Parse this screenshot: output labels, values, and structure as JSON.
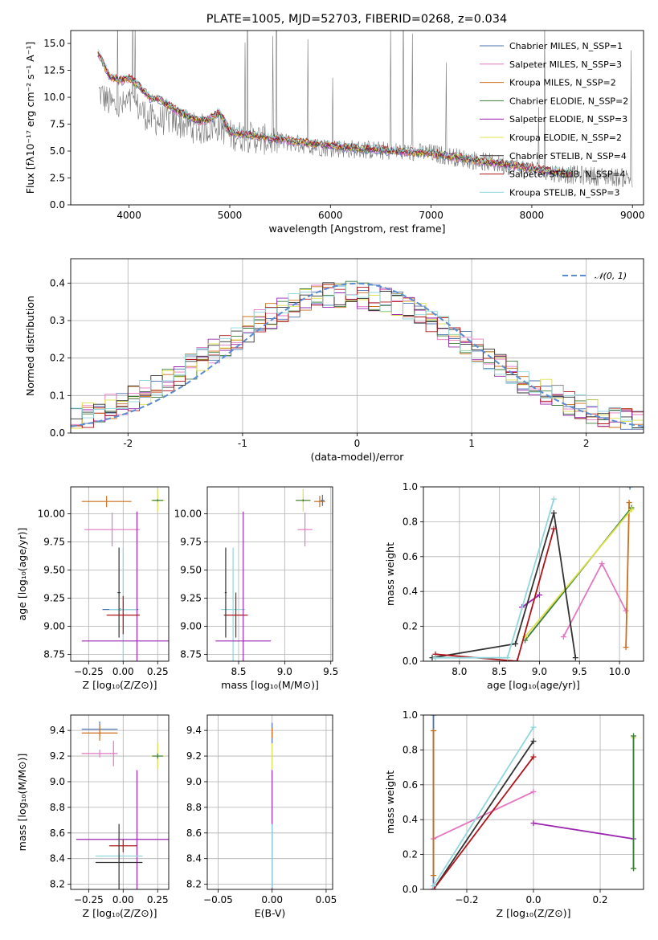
{
  "figure": {
    "title": "PLATE=1005, MJD=52703, FIBERID=0268, z=0.034"
  },
  "chart_data": [
    {
      "id": "spectrum",
      "type": "line",
      "title": "PLATE=1005, MJD=52703, FIBERID=0268, z=0.034",
      "xlabel": "wavelength [Angstrom, rest frame]",
      "ylabel": "Flux [fλ10⁻¹⁷ erg cm⁻² s⁻¹ A⁻¹]",
      "xlim": [
        3420,
        9110
      ],
      "ylim": [
        0,
        16.2
      ],
      "xticks": [
        4000,
        5000,
        6000,
        7000,
        8000,
        9000
      ],
      "yticks": [
        0.0,
        2.5,
        5.0,
        7.5,
        10.0,
        12.5,
        15.0
      ],
      "legend_position": "top-right",
      "series": [
        {
          "name": "Chabrier MILES, N_SSP=1",
          "color": "#4c72b0"
        },
        {
          "name": "Salpeter MILES, N_SSP=3",
          "color": "#e377c2"
        },
        {
          "name": "Kroupa MILES, N_SSP=2",
          "color": "#cc6f1a"
        },
        {
          "name": "Chabrier ELODIE, N_SSP=2",
          "color": "#3a7d3a"
        },
        {
          "name": "Salpeter ELODIE, N_SSP=3",
          "color": "#9b27b0"
        },
        {
          "name": "Kroupa ELODIE, N_SSP=2",
          "color": "#dde04a"
        },
        {
          "name": "Chabrier STELIB, N_SSP=4",
          "color": "#333333"
        },
        {
          "name": "Salpeter STELIB, N_SSP=4",
          "color": "#b0141a"
        },
        {
          "name": "Kroupa STELIB, N_SSP=3",
          "color": "#8fd7dc"
        }
      ],
      "data_series": {
        "name": "data",
        "color": "#777777",
        "x": [
          3700,
          3800,
          3900,
          4000,
          4100,
          4200,
          4300,
          4400,
          4500,
          4600,
          4700,
          4800,
          4900,
          5000,
          5200,
          5400,
          5600,
          5800,
          6000,
          6200,
          6400,
          6600,
          6800,
          7000,
          7200,
          7400,
          7600,
          7800,
          8000,
          8200,
          8400,
          8600,
          8800,
          9000
        ],
        "y": [
          10.5,
          9.5,
          9.0,
          9.5,
          9.0,
          8.0,
          7.8,
          8.0,
          7.6,
          7.3,
          7.0,
          7.2,
          7.4,
          6.5,
          6.3,
          6.0,
          5.8,
          5.5,
          5.3,
          5.2,
          5.1,
          5.0,
          4.9,
          4.8,
          4.5,
          4.2,
          3.9,
          3.6,
          3.3,
          3.0,
          2.8,
          2.7,
          2.6,
          2.5
        ]
      },
      "model_series": {
        "x": [
          3700,
          3800,
          3900,
          4000,
          4100,
          4200,
          4300,
          4400,
          4500,
          4600,
          4700,
          4800,
          4900,
          5000,
          5200,
          5400,
          5600,
          5800,
          6000,
          6200,
          6400,
          6600,
          6800,
          7000,
          7200,
          7400,
          7600,
          7800,
          8000,
          8200,
          8400
        ],
        "y": [
          14.0,
          12.0,
          11.5,
          11.8,
          11.0,
          10.0,
          9.8,
          9.2,
          8.6,
          8.2,
          7.8,
          8.0,
          8.6,
          6.8,
          6.5,
          6.2,
          6.0,
          5.7,
          5.5,
          5.3,
          5.2,
          5.0,
          4.9,
          4.8,
          4.5,
          4.2,
          3.9,
          3.7,
          3.4,
          3.1,
          2.9
        ]
      }
    },
    {
      "id": "residuals",
      "type": "line",
      "xlabel": "(data-model)/error",
      "ylabel": "Normed distribution",
      "xlim": [
        -2.5,
        2.5
      ],
      "ylim": [
        0,
        0.465
      ],
      "xticks": [
        -2,
        -1,
        0,
        1,
        2
      ],
      "yticks": [
        0.0,
        0.1,
        0.2,
        0.3,
        0.4
      ],
      "grid": true,
      "legend_position": "top-right",
      "reference": {
        "name": "𝒩(0, 1)",
        "color": "#5b8bd0",
        "style": "dashed"
      },
      "series_colors": [
        "#4c72b0",
        "#e377c2",
        "#cc6f1a",
        "#3a7d3a",
        "#9b27b0",
        "#dde04a",
        "#333333",
        "#b0141a",
        "#8fd7dc"
      ]
    },
    {
      "id": "age-Z",
      "type": "scatter",
      "xlabel": "Z [log₁₀(Z/Z⊙)]",
      "ylabel": "age  [log₁₀(age/yr)]",
      "xlim": [
        -0.38,
        0.33
      ],
      "ylim": [
        8.69,
        10.24
      ],
      "xticks": [
        -0.25,
        0.0,
        0.25
      ],
      "yticks": [
        8.75,
        9.0,
        9.25,
        9.5,
        9.75,
        10.0
      ],
      "xticklabels": [
        "−0.25",
        "0.00",
        "0.25"
      ],
      "yticklabels": [
        "8.75",
        "9.00",
        "9.25",
        "9.50",
        "9.75",
        "10.00"
      ],
      "grid": true,
      "points": [
        {
          "x": -0.02,
          "y": 9.15,
          "xerr": 0.13,
          "yerr": 0.01,
          "color": "#4c72b0"
        },
        {
          "x": 0.0,
          "y": 9.15,
          "xerr": 0.1,
          "yerr": 0.55,
          "color": "#8fd7dc"
        },
        {
          "x": -0.08,
          "y": 9.86,
          "xerr": 0.2,
          "yerr": 0.15,
          "color": "#e377c2"
        },
        {
          "x": -0.12,
          "y": 10.11,
          "xerr": 0.18,
          "yerr": 0.05,
          "color": "#cc6f1a"
        },
        {
          "x": 0.1,
          "y": 8.87,
          "xerr": 0.4,
          "yerr": 1.15,
          "color": "#9b27b0"
        },
        {
          "x": 0.25,
          "y": 10.12,
          "xerr": 0.05,
          "yerr": 0.1,
          "color": "#dde04a"
        },
        {
          "x": 0.25,
          "y": 10.12,
          "xerr": 0.04,
          "yerr": 0.01,
          "color": "#3a7d3a"
        },
        {
          "x": -0.03,
          "y": 9.3,
          "xerr": 0.01,
          "yerr": 0.4,
          "color": "#333333"
        },
        {
          "x": 0.0,
          "y": 9.1,
          "xerr": 0.12,
          "yerr": 0.17,
          "color": "#b0141a"
        }
      ]
    },
    {
      "id": "age-mass",
      "type": "scatter",
      "xlabel": "mass [log₁₀(M/M⊙)]",
      "xlim": [
        8.16,
        9.52
      ],
      "ylim": [
        8.69,
        10.24
      ],
      "xticks": [
        8.5,
        9.0,
        9.5
      ],
      "yticks": [
        8.75,
        9.0,
        9.25,
        9.5,
        9.75,
        10.0
      ],
      "xticklabels": [
        "8.5",
        "9.0",
        "9.5"
      ],
      "yticklabels": [
        "8.75",
        "9.00",
        "9.25",
        "9.50",
        "9.75",
        "10.00"
      ],
      "grid": true,
      "points": [
        {
          "x": 8.44,
          "y": 9.15,
          "xerr": 0.13,
          "yerr": 0.55,
          "color": "#8fd7dc"
        },
        {
          "x": 8.47,
          "y": 9.1,
          "xerr": 0.13,
          "yerr": 0.2,
          "color": "#b0141a"
        },
        {
          "x": 8.36,
          "y": 9.3,
          "xerr": 0.01,
          "yerr": 0.4,
          "color": "#333333"
        },
        {
          "x": 8.55,
          "y": 8.87,
          "xerr": 0.3,
          "yerr": 1.15,
          "color": "#9b27b0"
        },
        {
          "x": 9.22,
          "y": 9.86,
          "xerr": 0.08,
          "yerr": 0.15,
          "color": "#e377c2"
        },
        {
          "x": 9.38,
          "y": 10.11,
          "xerr": 0.06,
          "yerr": 0.05,
          "color": "#cc6f1a"
        },
        {
          "x": 9.41,
          "y": 10.12,
          "xerr": 0.02,
          "yerr": 0.05,
          "color": "#4c72b0"
        },
        {
          "x": 9.2,
          "y": 10.12,
          "xerr": 0.08,
          "yerr": 0.1,
          "color": "#dde04a"
        },
        {
          "x": 9.2,
          "y": 10.12,
          "xerr": 0.08,
          "yerr": 0.01,
          "color": "#3a7d3a"
        }
      ]
    },
    {
      "id": "weight-age",
      "type": "line",
      "xlabel": "age  [log₁₀(age/yr)]",
      "ylabel": "mass weight",
      "xlim": [
        7.55,
        10.3
      ],
      "ylim": [
        0,
        1.0
      ],
      "xticks": [
        8.0,
        8.5,
        9.0,
        9.5,
        10.0
      ],
      "yticks": [
        0.0,
        0.2,
        0.4,
        0.6,
        0.8,
        1.0
      ],
      "xticklabels": [
        "8.0",
        "8.5",
        "9.0",
        "9.5",
        "10.0"
      ],
      "yticklabels": [
        "0.0",
        "0.2",
        "0.4",
        "0.6",
        "0.8",
        "1.0"
      ],
      "grid": true,
      "series": [
        {
          "color": "#4c72b0",
          "x": [
            10.13
          ],
          "y": [
            1.0
          ]
        },
        {
          "color": "#e377c2",
          "x": [
            9.3,
            9.78,
            10.08
          ],
          "y": [
            0.14,
            0.56,
            0.29
          ]
        },
        {
          "color": "#cc6f1a",
          "x": [
            10.08,
            10.12
          ],
          "y": [
            0.08,
            0.91
          ]
        },
        {
          "color": "#3a7d3a",
          "x": [
            8.82,
            10.15
          ],
          "y": [
            0.12,
            0.88
          ]
        },
        {
          "color": "#9b27b0",
          "x": [
            8.78,
            9.0
          ],
          "y": [
            0.31,
            0.38
          ]
        },
        {
          "color": "#dde04a",
          "x": [
            8.82,
            10.15
          ],
          "y": [
            0.14,
            0.87
          ]
        },
        {
          "color": "#333333",
          "x": [
            7.66,
            8.7,
            9.18,
            9.45
          ],
          "y": [
            0.02,
            0.1,
            0.85,
            0.02
          ]
        },
        {
          "color": "#b0141a",
          "x": [
            7.7,
            8.72,
            9.18
          ],
          "y": [
            0.04,
            0.0,
            0.76
          ]
        },
        {
          "color": "#8fd7dc",
          "x": [
            7.7,
            8.6,
            9.18
          ],
          "y": [
            0.02,
            0.02,
            0.93
          ]
        }
      ]
    },
    {
      "id": "mass-Z",
      "type": "scatter",
      "xlabel": "Z [log₁₀(Z/Z⊙)]",
      "ylabel": "mass [log₁₀(M/M⊙)]",
      "xlim": [
        -0.38,
        0.33
      ],
      "ylim": [
        8.16,
        9.52
      ],
      "xticks": [
        -0.25,
        0.0,
        0.25
      ],
      "yticks": [
        8.2,
        8.4,
        8.6,
        8.8,
        9.0,
        9.2,
        9.4
      ],
      "xticklabels": [
        "−0.25",
        "0.00",
        "0.25"
      ],
      "yticklabels": [
        "8.2",
        "8.4",
        "8.6",
        "8.8",
        "9.0",
        "9.2",
        "9.4"
      ],
      "grid": true,
      "points": [
        {
          "x": -0.17,
          "y": 9.41,
          "xerr": 0.13,
          "yerr": 0.06,
          "color": "#4c72b0"
        },
        {
          "x": -0.17,
          "y": 9.38,
          "xerr": 0.13,
          "yerr": 0.06,
          "color": "#cc6f1a"
        },
        {
          "x": -0.17,
          "y": 9.22,
          "xerr": 0.13,
          "yerr": 0.03,
          "color": "#e377c2"
        },
        {
          "x": -0.07,
          "y": 9.22,
          "xerr": 0.01,
          "yerr": 0.1,
          "color": "#e377c2"
        },
        {
          "x": 0.25,
          "y": 9.2,
          "xerr": 0.05,
          "yerr": 0.1,
          "color": "#dde04a"
        },
        {
          "x": 0.25,
          "y": 9.2,
          "xerr": 0.04,
          "yerr": 0.02,
          "color": "#3a7d3a"
        },
        {
          "x": 0.1,
          "y": 8.55,
          "xerr": 0.44,
          "yerr": 0.54,
          "color": "#9b27b0"
        },
        {
          "x": 0.0,
          "y": 8.5,
          "xerr": 0.1,
          "yerr": 0.05,
          "color": "#b0141a"
        },
        {
          "x": -0.03,
          "y": 8.42,
          "xerr": 0.17,
          "yerr": 0.02,
          "color": "#8fd7dc"
        },
        {
          "x": -0.03,
          "y": 8.37,
          "xerr": 0.17,
          "yerr": 0.3,
          "color": "#333333"
        }
      ]
    },
    {
      "id": "mass-EBV",
      "type": "scatter",
      "xlabel": "E(B-V)",
      "xlim": [
        -0.06,
        0.056
      ],
      "ylim": [
        8.16,
        9.52
      ],
      "xticks": [
        -0.05,
        0.0,
        0.05
      ],
      "yticks": [
        8.2,
        8.4,
        8.6,
        8.8,
        9.0,
        9.2,
        9.4
      ],
      "xticklabels": [
        "−0.05",
        "0.00",
        "0.05"
      ],
      "yticklabels": [
        "8.2",
        "8.4",
        "8.6",
        "8.8",
        "9.0",
        "9.2",
        "9.4"
      ],
      "grid": true,
      "points": [
        {
          "x": 0.0,
          "y": 9.38,
          "xerr": 0.0,
          "yerr": 0.08,
          "color": "#4c72b0"
        },
        {
          "x": 0.0,
          "y": 9.38,
          "xerr": 0.0,
          "yerr": 0.04,
          "color": "#cc6f1a"
        },
        {
          "x": 0.0,
          "y": 9.2,
          "xerr": 0.0,
          "yerr": 0.1,
          "color": "#dde04a"
        },
        {
          "x": 0.0,
          "y": 8.55,
          "xerr": 0.0,
          "yerr": 0.54,
          "color": "#9b27b0"
        },
        {
          "x": 0.0,
          "y": 8.42,
          "xerr": 0.0,
          "yerr": 0.25,
          "color": "#8fd7dc"
        }
      ]
    },
    {
      "id": "weight-Z",
      "type": "line",
      "xlabel": "Z [log₁₀(Z/Z⊙)]",
      "ylabel": "mass weight",
      "xlim": [
        -0.33,
        0.33
      ],
      "ylim": [
        0,
        1.0
      ],
      "xticks": [
        -0.2,
        0.0,
        0.2
      ],
      "yticks": [
        0.0,
        0.2,
        0.4,
        0.6,
        0.8,
        1.0
      ],
      "xticklabels": [
        "−0.2",
        "0.0",
        "0.2"
      ],
      "yticklabels": [
        "0.0",
        "0.2",
        "0.4",
        "0.6",
        "0.8",
        "1.0"
      ],
      "grid": true,
      "series": [
        {
          "color": "#4c72b0",
          "x": [
            -0.3,
            -0.3
          ],
          "y": [
            0.0,
            1.0
          ]
        },
        {
          "color": "#e377c2",
          "x": [
            -0.3,
            0.0
          ],
          "y": [
            0.29,
            0.56
          ]
        },
        {
          "color": "#cc6f1a",
          "x": [
            -0.3,
            -0.3
          ],
          "y": [
            0.08,
            0.91
          ]
        },
        {
          "color": "#9b27b0",
          "x": [
            0.0,
            0.3
          ],
          "y": [
            0.38,
            0.29
          ]
        },
        {
          "color": "#dde04a",
          "x": [
            0.3,
            0.3
          ],
          "y": [
            0.12,
            0.87
          ]
        },
        {
          "color": "#3a7d3a",
          "x": [
            0.3,
            0.3
          ],
          "y": [
            0.12,
            0.88
          ]
        },
        {
          "color": "#333333",
          "x": [
            -0.3,
            0.0
          ],
          "y": [
            0.0,
            0.85
          ]
        },
        {
          "color": "#b0141a",
          "x": [
            -0.3,
            0.0
          ],
          "y": [
            0.0,
            0.76
          ]
        },
        {
          "color": "#8fd7dc",
          "x": [
            -0.3,
            0.0
          ],
          "y": [
            0.02,
            0.93
          ]
        }
      ]
    }
  ]
}
